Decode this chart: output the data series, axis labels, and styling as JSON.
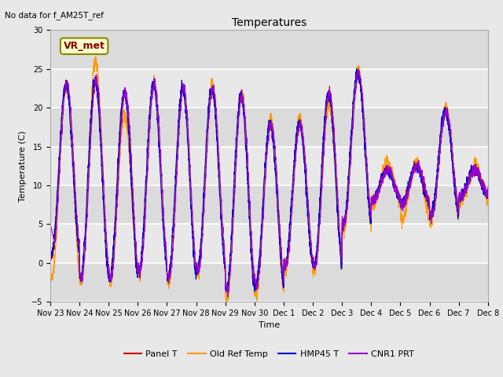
{
  "title": "Temperatures",
  "xlabel": "Time",
  "ylabel": "Temperature (C)",
  "annotation_text": "No data for f_AM25T_ref",
  "box_label": "VR_met",
  "ylim": [
    -5,
    30
  ],
  "yticks": [
    -5,
    0,
    5,
    10,
    15,
    20,
    25,
    30
  ],
  "xtick_labels": [
    "Nov 23",
    "Nov 24",
    "Nov 25",
    "Nov 26",
    "Nov 27",
    "Nov 28",
    "Nov 29",
    "Nov 30",
    "Dec 1",
    "Dec 2",
    "Dec 3",
    "Dec 4",
    "Dec 5",
    "Dec 6",
    "Dec 7",
    "Dec 8"
  ],
  "legend_labels": [
    "Panel T",
    "Old Ref Temp",
    "HMP45 T",
    "CNR1 PRT"
  ],
  "colors": {
    "panel_t": "#cc0000",
    "old_ref_temp": "#ff9900",
    "hmp45_t": "#0000cc",
    "cnr1_prt": "#9900cc"
  },
  "background_color": "#e8e8e8",
  "grid_color": "#ffffff",
  "n_points": 3000,
  "figsize": [
    6.4,
    4.8
  ],
  "dpi": 100
}
